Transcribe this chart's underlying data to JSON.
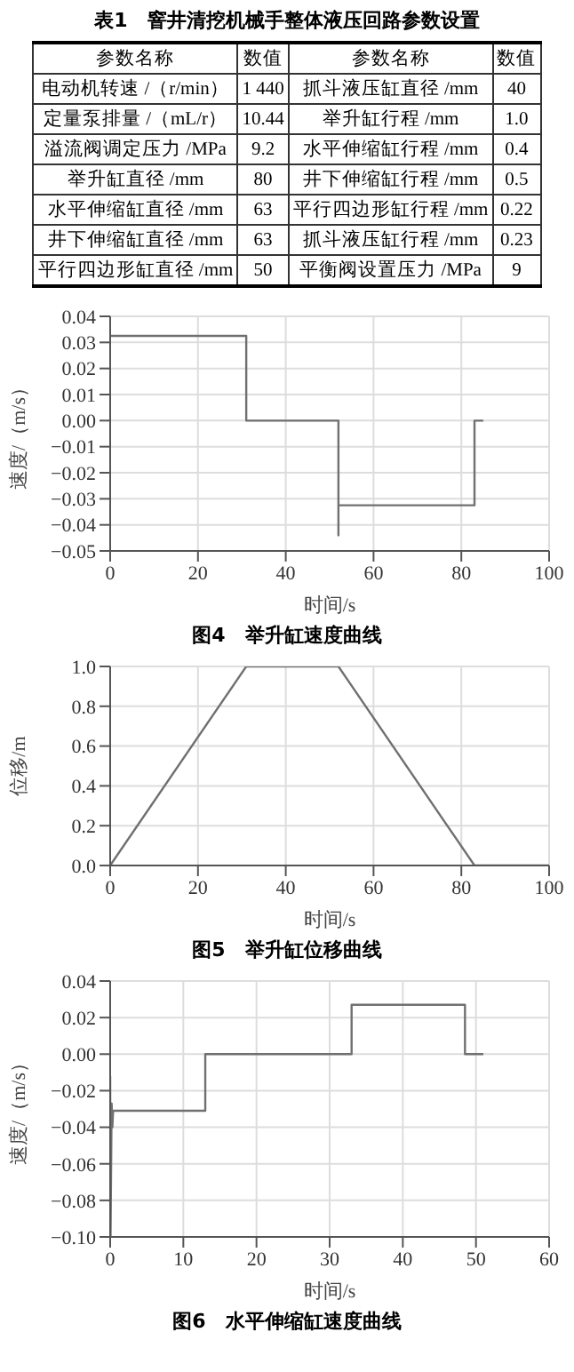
{
  "chart_data": [
    {
      "type": "other",
      "title": "表1　窨井清挖机械手整体液压回路参数设置",
      "annotations": [
        "参数名称",
        "数值",
        "参数名称",
        "数值",
        "电动机转速 /（r/min）",
        "1 440",
        "抓斗液压缸直径 /mm",
        "40",
        "定量泵排量 /（mL/r）",
        "10.44",
        "举升缸行程 /mm",
        "1.0",
        "溢流阀调定压力 /MPa",
        "9.2",
        "水平伸缩缸行程 /mm",
        "0.4",
        "举升缸直径 /mm",
        "80",
        "井下伸缩缸行程 /mm",
        "0.5",
        "水平伸缩缸直径 /mm",
        "63",
        "平行四边形缸行程 /mm",
        "0.22",
        "井下伸缩缸直径 /mm",
        "63",
        "抓斗液压缸行程 /mm",
        "0.23",
        "平行四边形缸直径 /mm",
        "50",
        "平衡阀设置压力 /MPa",
        "9"
      ]
    },
    {
      "type": "line",
      "title": "图4　举升缸速度曲线",
      "xlabel": "时间/s",
      "ylabel": "速度/（m/s）",
      "grid": true,
      "xlim": [
        0,
        100
      ],
      "xticks": [
        0,
        20,
        40,
        60,
        80,
        100
      ],
      "ylim": [
        -0.05,
        0.04
      ],
      "yticks": [
        {
          "value": -0.05,
          "label": "−0.05"
        },
        {
          "value": -0.04,
          "label": "−0.04"
        },
        {
          "value": -0.03,
          "label": "−0.03"
        },
        {
          "value": -0.02,
          "label": "−0.02"
        },
        {
          "value": -0.01,
          "label": "−0.01"
        },
        {
          "value": 0,
          "label": "0.00"
        },
        {
          "value": 0.01,
          "label": "0.01"
        },
        {
          "value": 0.02,
          "label": "0.02"
        },
        {
          "value": 0.03,
          "label": "0.03"
        },
        {
          "value": 0.04,
          "label": "0.04"
        }
      ],
      "series": [
        {
          "color": "#707070",
          "x": [
            0,
            31,
            31,
            52,
            52,
            52,
            83,
            83,
            85
          ],
          "values": [
            0.0325,
            0.0325,
            0,
            0,
            -0.044,
            -0.0325,
            -0.0325,
            0,
            0
          ]
        }
      ]
    },
    {
      "type": "line",
      "title": "图5　举升缸位移曲线",
      "xlabel": "时间/s",
      "ylabel": "位移/m",
      "grid": true,
      "xlim": [
        0,
        100
      ],
      "xticks": [
        0,
        20,
        40,
        60,
        80,
        100
      ],
      "ylim": [
        0,
        1
      ],
      "yticks": [
        {
          "value": 0,
          "label": "0.0"
        },
        {
          "value": 0.2,
          "label": "0.2"
        },
        {
          "value": 0.4,
          "label": "0.4"
        },
        {
          "value": 0.6,
          "label": "0.6"
        },
        {
          "value": 0.8,
          "label": "0.8"
        },
        {
          "value": 1,
          "label": "1.0"
        }
      ],
      "series": [
        {
          "color": "#707070",
          "x": [
            0,
            31,
            52,
            83,
            100
          ],
          "values": [
            0,
            1,
            1,
            0,
            0
          ]
        }
      ]
    },
    {
      "type": "line",
      "title": "图6　水平伸缩缸速度曲线",
      "xlabel": "时间/s",
      "ylabel": "速度/（m/s）",
      "grid": true,
      "xlim": [
        0,
        60
      ],
      "xticks": [
        0,
        10,
        20,
        30,
        40,
        50,
        60
      ],
      "ylim": [
        -0.1,
        0.04
      ],
      "yticks": [
        {
          "value": -0.1,
          "label": "−0.10"
        },
        {
          "value": -0.08,
          "label": "−0.08"
        },
        {
          "value": -0.06,
          "label": "−0.06"
        },
        {
          "value": -0.04,
          "label": "−0.04"
        },
        {
          "value": -0.02,
          "label": "−0.02"
        },
        {
          "value": 0,
          "label": "0.00"
        },
        {
          "value": 0.02,
          "label": "0.02"
        },
        {
          "value": 0.04,
          "label": "0.04"
        }
      ],
      "series": [
        {
          "color": "#707070",
          "x": [
            0,
            0.05,
            0.2,
            0.3,
            0.4,
            13,
            13,
            33,
            33,
            48.5,
            48.5,
            51
          ],
          "values": [
            -0.012,
            -0.1,
            -0.027,
            -0.04,
            -0.031,
            -0.031,
            0,
            0,
            0.027,
            0.027,
            0,
            0
          ]
        }
      ]
    }
  ]
}
